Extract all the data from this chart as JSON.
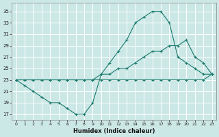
{
  "xlabel": "Humidex (Indice chaleur)",
  "bg_color": "#cce8e6",
  "grid_color": "#ffffff",
  "line_color": "#1a7a6e",
  "xlim": [
    -0.5,
    23.5
  ],
  "ylim": [
    16.0,
    36.5
  ],
  "yticks": [
    17,
    19,
    21,
    23,
    25,
    27,
    29,
    31,
    33,
    35
  ],
  "xticks": [
    0,
    1,
    2,
    3,
    4,
    5,
    6,
    7,
    8,
    9,
    10,
    11,
    12,
    13,
    14,
    15,
    16,
    17,
    18,
    19,
    20,
    21,
    22,
    23
  ],
  "line1_x": [
    0,
    1,
    2,
    3,
    4,
    5,
    6,
    7,
    8,
    9,
    10,
    11,
    12,
    13,
    14,
    15,
    16,
    17,
    18,
    19,
    20,
    21,
    22,
    23
  ],
  "line1_y": [
    23,
    22,
    21,
    20,
    19,
    19,
    18,
    17,
    17,
    19,
    24,
    26,
    28,
    30,
    33,
    34,
    35,
    35,
    33,
    27,
    26,
    25,
    24,
    24
  ],
  "line2_x": [
    0,
    1,
    2,
    3,
    4,
    5,
    6,
    7,
    8,
    9,
    10,
    11,
    12,
    13,
    14,
    15,
    16,
    17,
    18,
    19,
    20,
    21,
    22,
    23
  ],
  "line2_y": [
    23,
    23,
    23,
    23,
    23,
    23,
    23,
    23,
    23,
    23,
    24,
    24,
    25,
    25,
    26,
    27,
    28,
    28,
    29,
    29,
    30,
    27,
    26,
    24
  ],
  "line3_x": [
    0,
    1,
    2,
    3,
    4,
    5,
    6,
    7,
    8,
    9,
    10,
    11,
    12,
    13,
    14,
    15,
    16,
    17,
    18,
    19,
    20,
    21,
    22,
    23
  ],
  "line3_y": [
    23,
    23,
    23,
    23,
    23,
    23,
    23,
    23,
    23,
    23,
    23,
    23,
    23,
    23,
    23,
    23,
    23,
    23,
    23,
    23,
    23,
    23,
    23,
    24
  ]
}
